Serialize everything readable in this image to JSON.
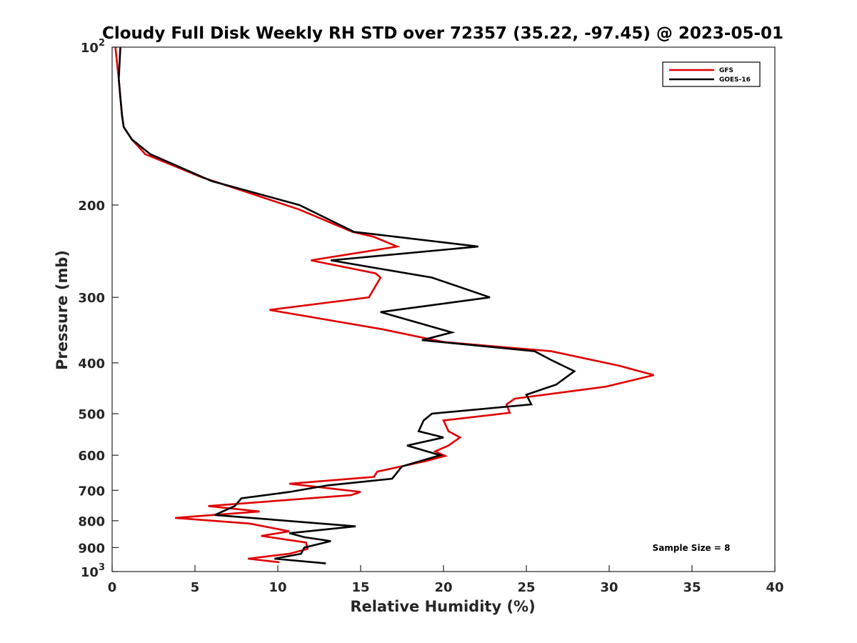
{
  "chart_data": {
    "type": "line",
    "title": "Cloudy Full Disk Weekly RH STD over 72357 (35.22, -97.45) @ 2023-05-01",
    "xlabel": "Relative Humidity (%)",
    "ylabel": "Pressure (mb)",
    "xlim": [
      0,
      40
    ],
    "ylim": [
      100,
      1000
    ],
    "y_scale": "log",
    "y_reversed": true,
    "xticks": [
      0,
      5,
      10,
      15,
      20,
      25,
      30,
      35,
      40
    ],
    "yticks": [
      100,
      200,
      300,
      400,
      500,
      600,
      700,
      800,
      900,
      1000
    ],
    "ytick_labels": {
      "100": {
        "base": "10",
        "exp": "2"
      },
      "200": "200",
      "300": "300",
      "400": "400",
      "500": "500",
      "600": "600",
      "700": "700",
      "800": "800",
      "900": "900",
      "1000": {
        "base": "10",
        "exp": "3"
      }
    },
    "grid": false,
    "legend_position": "top-right",
    "annotation": "Sample Size = 8",
    "series": [
      {
        "name": "GFS",
        "color": "#e00000",
        "points": [
          [
            0.2,
            100
          ],
          [
            0.4,
            115
          ],
          [
            0.5,
            125
          ],
          [
            0.6,
            135
          ],
          [
            0.7,
            142
          ],
          [
            1.2,
            150
          ],
          [
            2.0,
            160
          ],
          [
            5.4,
            177
          ],
          [
            11.3,
            204
          ],
          [
            14.5,
            225
          ],
          [
            15.8,
            230
          ],
          [
            17.2,
            240
          ],
          [
            12.0,
            255
          ],
          [
            15.9,
            270
          ],
          [
            16.2,
            275
          ],
          [
            15.5,
            300
          ],
          [
            9.5,
            317
          ],
          [
            16.3,
            345
          ],
          [
            20.0,
            365
          ],
          [
            26.5,
            380
          ],
          [
            30.6,
            405
          ],
          [
            32.7,
            422
          ],
          [
            29.8,
            444
          ],
          [
            24.3,
            468
          ],
          [
            23.8,
            480
          ],
          [
            24.0,
            498
          ],
          [
            20.0,
            515
          ],
          [
            20.3,
            540
          ],
          [
            21.0,
            555
          ],
          [
            20.3,
            575
          ],
          [
            19.5,
            590
          ],
          [
            20.1,
            602
          ],
          [
            19.0,
            615
          ],
          [
            16.0,
            645
          ],
          [
            15.8,
            660
          ],
          [
            10.7,
            680
          ],
          [
            15.0,
            705
          ],
          [
            14.4,
            715
          ],
          [
            5.8,
            750
          ],
          [
            8.9,
            768
          ],
          [
            3.8,
            790
          ],
          [
            8.3,
            810
          ],
          [
            10.7,
            838
          ],
          [
            9.0,
            855
          ],
          [
            11.7,
            880
          ],
          [
            11.8,
            905
          ],
          [
            10.7,
            925
          ],
          [
            8.2,
            945
          ],
          [
            10.1,
            960
          ]
        ]
      },
      {
        "name": "GOES-16",
        "color": "#000000",
        "points": [
          [
            0.5,
            100
          ],
          [
            0.4,
            115
          ],
          [
            0.5,
            125
          ],
          [
            0.6,
            135
          ],
          [
            0.7,
            142
          ],
          [
            1.2,
            150
          ],
          [
            2.3,
            160
          ],
          [
            6.0,
            180
          ],
          [
            11.3,
            200
          ],
          [
            14.6,
            225
          ],
          [
            22.1,
            240
          ],
          [
            13.2,
            255
          ],
          [
            19.3,
            275
          ],
          [
            22.8,
            300
          ],
          [
            16.2,
            320
          ],
          [
            20.5,
            350
          ],
          [
            18.7,
            362
          ],
          [
            25.5,
            380
          ],
          [
            26.5,
            395
          ],
          [
            27.9,
            415
          ],
          [
            26.8,
            440
          ],
          [
            25.0,
            460
          ],
          [
            25.3,
            480
          ],
          [
            19.3,
            500
          ],
          [
            18.8,
            515
          ],
          [
            18.5,
            540
          ],
          [
            20.0,
            555
          ],
          [
            17.8,
            575
          ],
          [
            19.8,
            600
          ],
          [
            17.5,
            630
          ],
          [
            16.9,
            665
          ],
          [
            13.0,
            685
          ],
          [
            10.7,
            705
          ],
          [
            7.8,
            725
          ],
          [
            7.4,
            750
          ],
          [
            6.2,
            780
          ],
          [
            14.7,
            820
          ],
          [
            10.7,
            845
          ],
          [
            11.6,
            860
          ],
          [
            13.2,
            875
          ],
          [
            11.6,
            900
          ],
          [
            11.4,
            925
          ],
          [
            9.8,
            945
          ],
          [
            12.9,
            965
          ]
        ]
      }
    ]
  }
}
